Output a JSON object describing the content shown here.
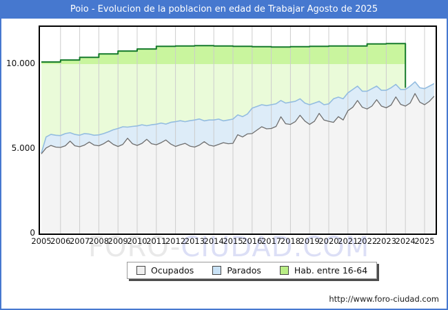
{
  "title": "Poio - Evolucion de la poblacion en edad de Trabajar Agosto de 2025",
  "watermark": {
    "part1": "FORO-",
    "part2": "CIUDAD.COM"
  },
  "footer": {
    "url": "http://www.foro-ciudad.com"
  },
  "colors": {
    "frame_blue": "#4678cf",
    "grid": "#cccccc",
    "hab_line": "#157a2b",
    "hab_fill_above_10000": "#c9f59e",
    "hab_fill_below_10000": "#eafbd9",
    "parados_line": "#93bce0",
    "parados_fill": "#ddecf8",
    "ocupados_line": "#6e6e6e",
    "ocupados_fill": "#f4f4f4"
  },
  "legend": {
    "items": [
      {
        "label": "Ocupados",
        "swatch": "#f0f0f0"
      },
      {
        "label": "Parados",
        "swatch": "#c9e2f6"
      },
      {
        "label": "Hab. entre 16-64",
        "swatch": "#b9ed85"
      }
    ]
  },
  "chart_data": {
    "type": "area",
    "title": "Poio - Evolucion de la poblacion en edad de Trabajar Agosto de 2025",
    "xlabel": "",
    "ylabel": "",
    "grid": "vertical-yearly",
    "legend_position": "bottom-center",
    "xlim": [
      2005,
      2025.58
    ],
    "ylim": [
      0,
      12200
    ],
    "x_tick_years": [
      2005,
      2006,
      2007,
      2008,
      2009,
      2010,
      2011,
      2012,
      2013,
      2014,
      2015,
      2016,
      2017,
      2018,
      2019,
      2020,
      2021,
      2022,
      2023,
      2024,
      2025
    ],
    "y_ticks": [
      {
        "value": 0,
        "label": "0"
      },
      {
        "value": 5000,
        "label": "5.000"
      },
      {
        "value": 10000,
        "label": "10.000"
      }
    ],
    "series": [
      {
        "name": "Ocupados",
        "kind": "area-bottom",
        "x_start": 2005.0,
        "x_step": 0.25,
        "values": [
          4700,
          5050,
          5200,
          5100,
          5080,
          5180,
          5450,
          5180,
          5120,
          5220,
          5400,
          5220,
          5180,
          5300,
          5480,
          5260,
          5140,
          5260,
          5620,
          5300,
          5200,
          5320,
          5560,
          5300,
          5240,
          5360,
          5520,
          5280,
          5140,
          5240,
          5320,
          5160,
          5100,
          5220,
          5420,
          5220,
          5160,
          5260,
          5360,
          5300,
          5320,
          5830,
          5700,
          5880,
          5900,
          6100,
          6300,
          6180,
          6200,
          6320,
          6890,
          6480,
          6440,
          6600,
          6980,
          6640,
          6440,
          6620,
          7090,
          6700,
          6620,
          6560,
          6900,
          6700,
          7250,
          7450,
          7850,
          7450,
          7350,
          7520,
          7900,
          7520,
          7420,
          7580,
          8060,
          7620,
          7520,
          7700,
          8260,
          7750,
          7600,
          7800,
          8100
        ]
      },
      {
        "name": "Parados",
        "kind": "area-stacked-top",
        "note": "values are Ocupados+Parados (upper edge of the blue band)",
        "x_start": 2005.0,
        "x_step": 0.25,
        "values": [
          4750,
          5700,
          5850,
          5800,
          5780,
          5900,
          5950,
          5850,
          5800,
          5900,
          5870,
          5800,
          5820,
          5900,
          6000,
          6120,
          6200,
          6300,
          6280,
          6320,
          6350,
          6420,
          6360,
          6420,
          6450,
          6520,
          6460,
          6560,
          6600,
          6660,
          6600,
          6660,
          6700,
          6760,
          6650,
          6700,
          6700,
          6750,
          6650,
          6700,
          6750,
          7000,
          6900,
          7050,
          7400,
          7500,
          7600,
          7550,
          7600,
          7660,
          7850,
          7700,
          7750,
          7800,
          7950,
          7700,
          7600,
          7700,
          7800,
          7600,
          7650,
          7950,
          8050,
          7950,
          8300,
          8500,
          8700,
          8400,
          8400,
          8550,
          8700,
          8450,
          8450,
          8600,
          8800,
          8500,
          8500,
          8700,
          8950,
          8600,
          8550,
          8700,
          8850
        ]
      },
      {
        "name": "Hab. entre 16-64",
        "kind": "step-area-yearly",
        "x_years": [
          2005,
          2006,
          2007,
          2008,
          2009,
          2010,
          2011,
          2012,
          2013,
          2014,
          2015,
          2016,
          2017,
          2018,
          2019,
          2020,
          2021,
          2022,
          2023
        ],
        "values": [
          10120,
          10240,
          10400,
          10600,
          10770,
          10890,
          11050,
          11070,
          11090,
          11070,
          11050,
          11030,
          11010,
          11030,
          11050,
          11070,
          11070,
          11190,
          11210
        ],
        "series_end_x": 2024.0
      }
    ]
  }
}
